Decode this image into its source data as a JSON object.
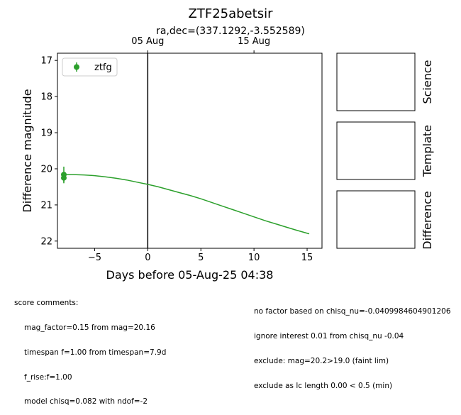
{
  "figure": {
    "title": "ZTF25abetsir",
    "subtitle": "ra,dec=(337.1292,-3.552589)",
    "top_ticks": [
      "05 Aug",
      "15 Aug"
    ],
    "panel_labels": [
      "Science",
      "Template",
      "Difference"
    ]
  },
  "chart_data": {
    "type": "scatter",
    "title": "ZTF25abetsir",
    "subtitle": "ra,dec=(337.1292,-3.552589)",
    "xlabel": "Days before 05-Aug-25 04:38",
    "ylabel": "Difference magnitude",
    "xlim": [
      -8.5,
      16.4
    ],
    "ylim": [
      22.2,
      16.8
    ],
    "y_inverted": true,
    "xticks": [
      -5,
      0,
      5,
      10,
      15
    ],
    "yticks": [
      17,
      18,
      19,
      20,
      21,
      22
    ],
    "top_axis_ticks": [
      {
        "label": "05 Aug",
        "x": 0
      },
      {
        "label": "15 Aug",
        "x": 10
      }
    ],
    "reference_line_x": 0,
    "legend": {
      "placement": "top-left",
      "entries": [
        "ztfg"
      ]
    },
    "series": [
      {
        "name": "ztfg",
        "kind": "errorbar",
        "color": "#2ca02c",
        "points": [
          {
            "x": -7.9,
            "y": 20.16,
            "err": 0.22
          },
          {
            "x": -7.9,
            "y": 20.25,
            "err": 0.15
          }
        ]
      },
      {
        "kind": "model-line",
        "color": "#2ca02c",
        "x": [
          -7.9,
          -7,
          -6,
          -5,
          -4,
          -3,
          -2,
          -1,
          0,
          1,
          2,
          3,
          4,
          5,
          6,
          7,
          8,
          9,
          10,
          11,
          12,
          13,
          14,
          15.2
        ],
        "y": [
          20.16,
          20.16,
          20.17,
          20.19,
          20.22,
          20.26,
          20.31,
          20.37,
          20.43,
          20.5,
          20.58,
          20.66,
          20.74,
          20.83,
          20.93,
          21.03,
          21.13,
          21.23,
          21.33,
          21.43,
          21.52,
          21.61,
          21.7,
          21.8
        ]
      }
    ]
  },
  "comments": {
    "header": "score comments:",
    "left": [
      "mag_factor=0.15 from mag=20.16",
      "timespan f=1.00 from timespan=7.9d",
      "f_rise:f=1.00",
      "model chisq=0.082 with ndof=-2"
    ],
    "right": [
      "no factor based on chisq_nu=-0.0409984604901206",
      "ignore interest 0.01 from chisq_nu -0.04",
      "exclude: mag=20.2>19.0 (faint lim)",
      "exclude as lc length 0.00 < 0.5 (min)"
    ]
  }
}
